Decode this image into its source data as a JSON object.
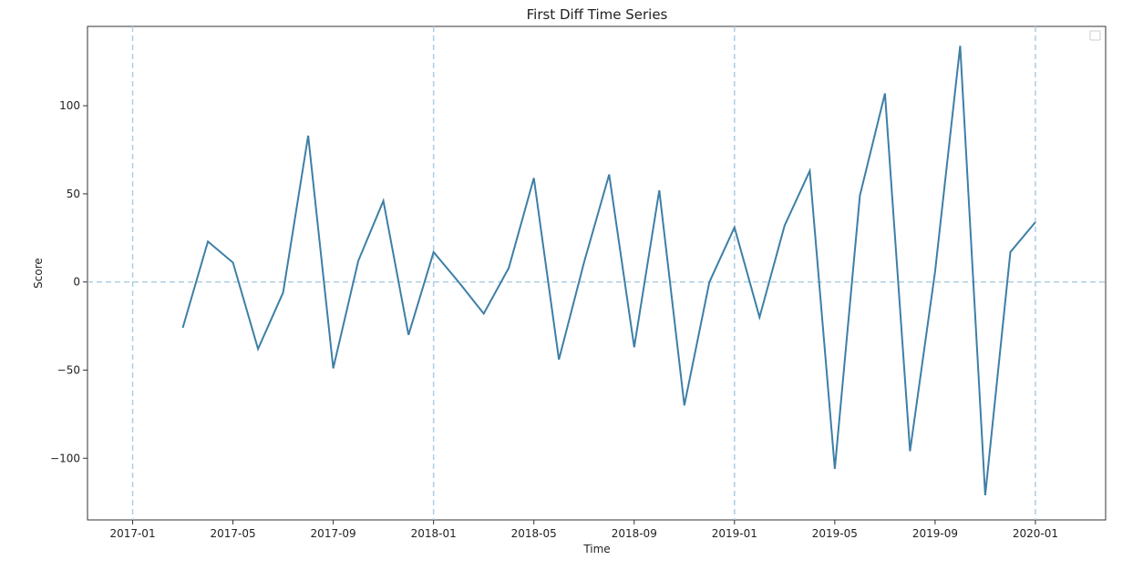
{
  "chart_data": {
    "type": "line",
    "title": "First Diff Time Series",
    "xlabel": "Time",
    "ylabel": "Score",
    "x_ticks": [
      "2017-01",
      "2017-05",
      "2017-09",
      "2018-01",
      "2018-05",
      "2018-09",
      "2019-01",
      "2019-05",
      "2019-09",
      "2020-01"
    ],
    "y_ticks": [
      -100,
      -50,
      0,
      50,
      100
    ],
    "y_tick_labels": [
      "−100",
      "−50",
      "0",
      "50",
      "100"
    ],
    "xlim_months": [
      -1.8,
      38.8
    ],
    "ylim": [
      -135,
      145
    ],
    "grid": "dashed reference lines at 2017-01, 2018-01, 2019-01, 2020-01 and y = 0",
    "legend": "top-right (empty)",
    "colors": {
      "line": "#3d7fa6",
      "ref_line": "#aecde3",
      "axes": "#333333"
    },
    "series": [
      {
        "name": "First Diff",
        "x": [
          "2017-03",
          "2017-04",
          "2017-05",
          "2017-06",
          "2017-07",
          "2017-08",
          "2017-09",
          "2017-10",
          "2017-11",
          "2017-12",
          "2018-01",
          "2018-02",
          "2018-03",
          "2018-04",
          "2018-05",
          "2018-06",
          "2018-07",
          "2018-08",
          "2018-09",
          "2018-10",
          "2018-11",
          "2018-12",
          "2019-01",
          "2019-02",
          "2019-03",
          "2019-04",
          "2019-05",
          "2019-06",
          "2019-07",
          "2019-08",
          "2019-09",
          "2019-10",
          "2019-11",
          "2019-12",
          "2020-01"
        ],
        "values": [
          -26,
          23,
          11,
          -38,
          -6,
          83,
          -49,
          12,
          46,
          -30,
          17,
          0,
          -18,
          8,
          59,
          -44,
          11,
          61,
          -37,
          52,
          -70,
          0,
          31,
          -20,
          32,
          63,
          -106,
          49,
          107,
          -96,
          6,
          134,
          -121,
          17,
          34
        ]
      }
    ]
  }
}
